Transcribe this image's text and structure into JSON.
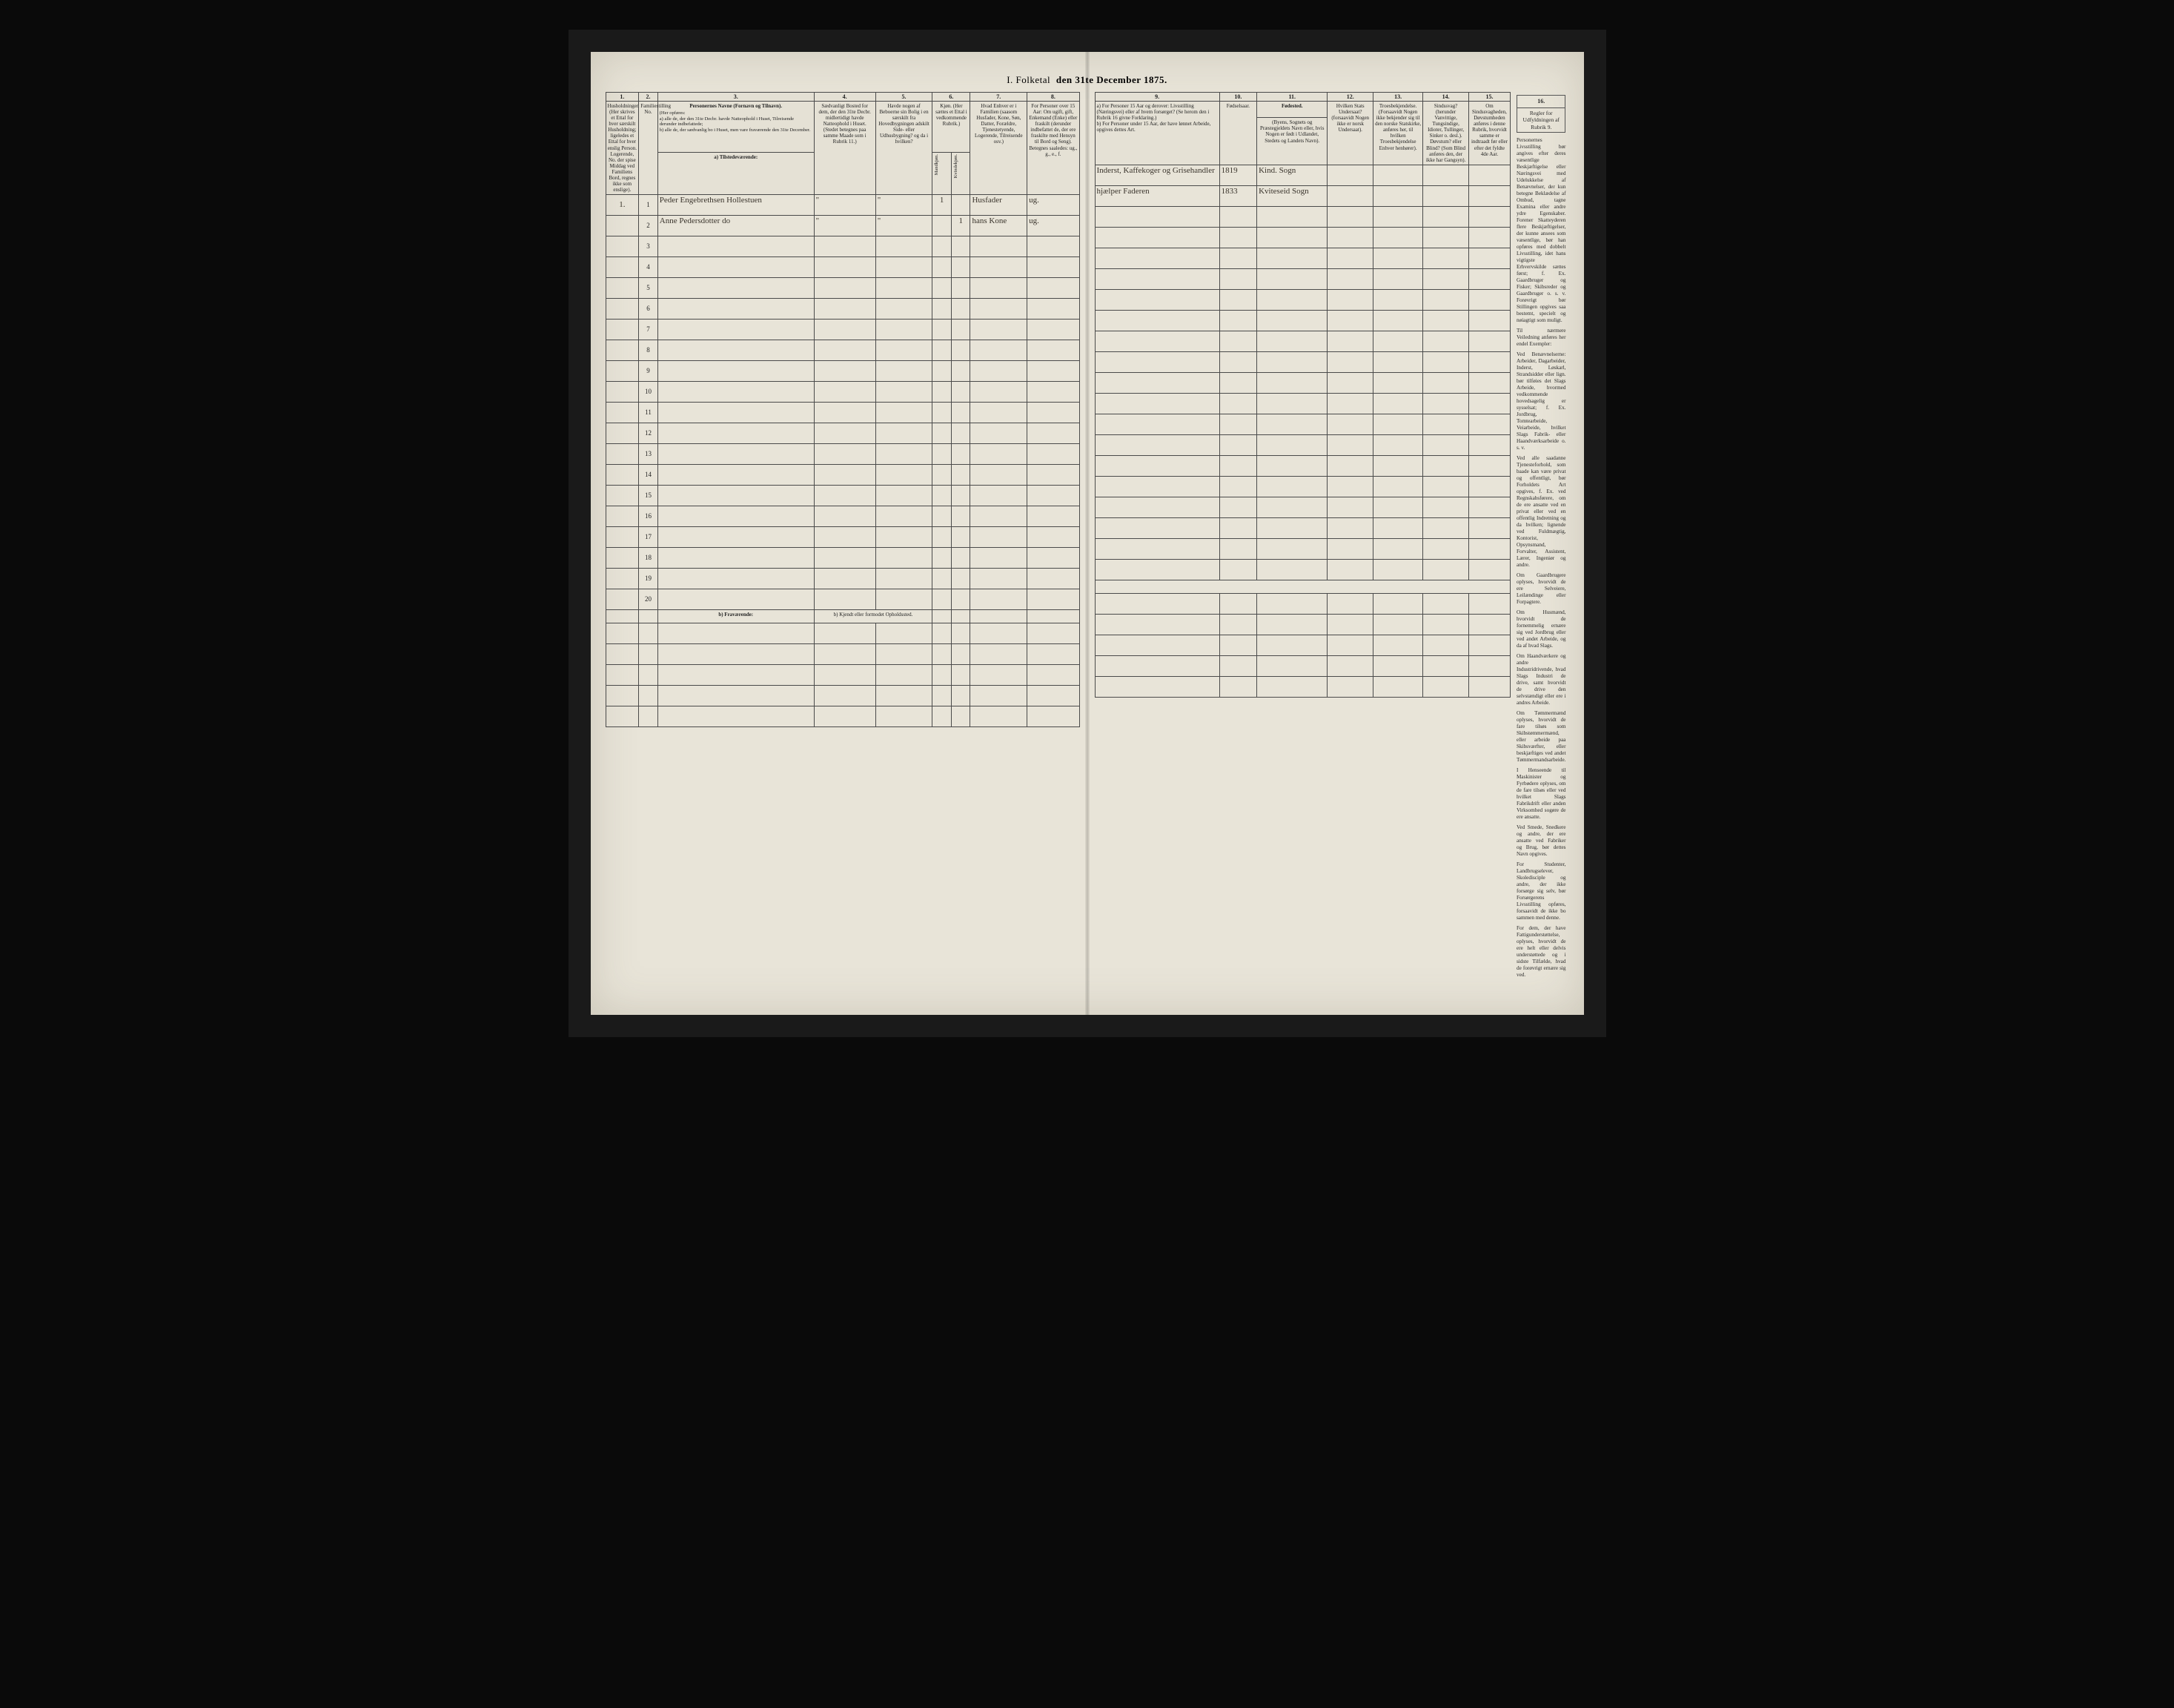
{
  "title": {
    "label": "I. Folketal",
    "date": "den 31te December 1875."
  },
  "left_columns": {
    "nums": [
      "1.",
      "2.",
      "3.",
      "4.",
      "5.",
      "6.",
      "7.",
      "8."
    ],
    "c1": "Husholdninger. (Her skrives et Ettal for hver særskilt Husholdning; ligeledes et Ettal for hver enslig Person. Logerende, No. der spise Middag ved Familiens Bord, regnes ikke som enslige).",
    "c2": "Familiestilling No.",
    "c3_head": "Personernes Navne (Fornavn og Tilnavn).",
    "c3_body": "(Her opføres:\na) alle de, der den 31te Decbr. havde Natteophold i Huset, Tilreisende derunder indbefattede;\nb) alle de, der sædvanlig bo i Huset, men vare fraværende den 31te December.",
    "c4": "Sædvanligt Bosted for dem, der den 31te Decbr. midlertidigt havde Natteophold i Huset. (Stedet betegnes paa samme Maade som i Rubrik 11.)",
    "c5": "Havde nogen af Beboerne sin Bolig i en særskilt fra Hovedbygningen adskilt Side- eller Udhusbygning? og da i hvilken?",
    "c6_head": "Kjøn. (Her sættes et Ettal i vedkommende Rubrik.)",
    "c6a": "Mandkjøn.",
    "c6b": "Kvindekjøn.",
    "c7": "Hvad Enhver er i Familien (saasom Husfader, Kone, Søn, Datter, Forældre, Tjenestetyende, Logerende, Tilreisende osv.)",
    "c8": "For Personer over 15 Aar: Om ugift, gift, Enkemand (Enke) eller fraskilt (derunder indbefattet de, der ere fraskilte med Hensyn til Bord og Seng). Betegnes saaledes: ug., g., e., f."
  },
  "right_columns": {
    "nums": [
      "9.",
      "10.",
      "11.",
      "12.",
      "13.",
      "14.",
      "15.",
      "16."
    ],
    "c9": "a) For Personer 15 Aar og derover: Livsstilling (Næringsvei) eller af hvem forsørget? (Se herom den i Rubrik 16 givne Forklaring.)\nb) For Personer under 15 Aar, der have lønnet Arbeide, opgives dettes Art.",
    "c10": "Fødselsaar.",
    "c11_head": "Fødested.",
    "c11": "(Byens, Sognets og Præstegjeldets Navn eller, hvis Nogen er født i Udlandet, Stedets og Landets Navn).",
    "c12": "Hvilken Stats Undersaat? (forsaavidt Nogen ikke er norsk Undersaat).",
    "c13": "Troesbekjendelse. (Forsaavidt Nogen ikke bekjender sig til den norske Statskirke, anføres her, til hvilken Troesbekjendelse Enhver henhører).",
    "c14": "Sindssvag? (herunder Vanvittige, Tungsindige, Idioter, Tullinger, Sinker o. desl.). Døvstum? eller Blind? (Som Blind anføres den, der ikke har Gangsyn).",
    "c15": "Om Sindssvagheden, Døvstumheden anføres i denne Rubrik, hvorvidt samme er indtraadt før eller efter det fyldte 4de Aar.",
    "c16": "I Tilfælde af Sindssvaghed og Døvstumhed",
    "instr_head": "Regler for Udfyldningen af Rubrik 9."
  },
  "section_a": "a) Tilstedeværende:",
  "section_b": "b) Fraværende:",
  "section_b_note": "b) Kjendt eller formodet Opholdssted.",
  "rows": [
    {
      "n": "1",
      "hh": "1.",
      "name": "Peder Engebrethsen Hollestuen",
      "c4": "\"",
      "c5": "\"",
      "sexM": "1",
      "sexK": "",
      "fam": "Husfader",
      "civ": "ug.",
      "occ": "Inderst, Kaffekoger og Grisehandler",
      "born": "1819",
      "place": "Kind. Sogn"
    },
    {
      "n": "2",
      "hh": "",
      "name": "Anne Pedersdotter   do",
      "c4": "\"",
      "c5": "\"",
      "sexM": "",
      "sexK": "1",
      "fam": "hans Kone",
      "civ": "ug.",
      "occ": "hjælper Faderen",
      "born": "1833",
      "place": "Kviteseid Sogn"
    },
    {
      "n": "3"
    },
    {
      "n": "4"
    },
    {
      "n": "5"
    },
    {
      "n": "6"
    },
    {
      "n": "7"
    },
    {
      "n": "8"
    },
    {
      "n": "9"
    },
    {
      "n": "10"
    },
    {
      "n": "11"
    },
    {
      "n": "12"
    },
    {
      "n": "13"
    },
    {
      "n": "14"
    },
    {
      "n": "15"
    },
    {
      "n": "16"
    },
    {
      "n": "17"
    },
    {
      "n": "18"
    },
    {
      "n": "19"
    },
    {
      "n": "20"
    }
  ],
  "absent_rows": 5,
  "instructions": [
    "Personernes Livsstilling bør angives efter deres væsentlige Beskjæftigelse eller Næringsvei med Udelukkelse af Benævnelser, der kun betegne Beklædelse af Ombud, tagne Examina eller andre ydre Egenskaber. Forener Skatteyderen flere Beskjæftigelser, der kunne ansees som væsentlige, bør han opføres med dobbelt Livsstilling, idet hans vigtigste Erhvervskilde sættes først; f. Ex. Gaardbruger og Fisker; Skibsreder og Gaardbruger o. s. v. Forøvrigt bør Stillingen opgives saa bestemt, specielt og nøiagtigt som muligt.",
    "Til nærmere Veiledning anføres her endel Exempler:",
    "Ved Benævnelserne: Arbeider, Dagarbeider, Inderst, Løskarl, Strandsidder eller lign. bør tilføies det Slags Arbeide, hvormed vedkommende hovedsagelig er sysselsat; f. Ex. Jordbrug, Tomtearbeide, Veiarbeide, hvilket Slags Fabrik- eller Haandværksarbeide o. s. v.",
    "Ved alle saadanne Tjenesteforhold, som baade kan være privat og offentligt, bør Forholdets Art opgives, f. Ex. ved Regnskabsførere, om de ere ansatte ved en privat eller ved en offentlig Indretning og da hvilken; lignende ved Fuldmægtig, Kontorist, Opsynsmand, Forvalter, Assistent, Lærer, Ingeniør og andre.",
    "Om Gaardbrugere oplyses, hvorvidt de ere Selveiere, Leilændinge eller Forpagtere.",
    "Om Husmænd, hvorvidt de fornemmelig ernære sig ved Jordbrug eller ved andet Arbeide, og da af hvad Slags.",
    "Om Haandværkere og andre Industridrivende, hvad Slags Industri de drive, samt hvorvidt de drive den selvstændigt eller ere i andres Arbeide.",
    "Om Tømmermænd oplyses, hvorvidt de fare tilsøs som Skibstømmermænd, eller arbeide paa Skibsværfter, eller beskjæftiges ved andet Tømmermandsarbeide.",
    "I Henseende til Maskinister og Fyrbødere oplyses, om de fare tilsøs eller ved hvilket Slags Fabrikdrift eller anden Virksomhed sogøre de ere ansatte.",
    "Ved Smede, Snedkere og andre, der ere ansatte ved Fabriker og Brug, bør dettes Navn opgives.",
    "For Studenter, Landbrugselever, Skoledisciple og andre, der ikke forsørge sig selv, bør Forsørgerens Livsstilling opføres, forsaavidt de ikke bo sammen med denne.",
    "For dem, der have Fattigunderstøttelse, oplyses, hvorvidt de ere helt eller delvis understøttede og i sidste Tilfælde, hvad de forøvrigt ernære sig ved."
  ]
}
